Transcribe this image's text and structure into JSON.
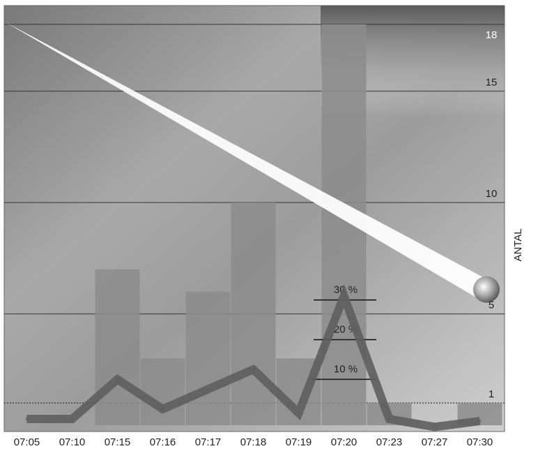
{
  "chart_data": {
    "type": "bar",
    "title": "",
    "xlabel": "",
    "ylabel": "ANTAL",
    "categories": [
      "07:05",
      "07:10",
      "07:15",
      "07:16",
      "07:17",
      "07:18",
      "07:19",
      "07:20",
      "07:23",
      "07:27",
      "07:30"
    ],
    "series": [
      {
        "type": "bar",
        "values": [
          0,
          0,
          7,
          3,
          6,
          10,
          3,
          18,
          1,
          0,
          1
        ]
      },
      {
        "type": "line",
        "axis": "percent",
        "values": [
          0,
          0,
          10,
          2.5,
          7.5,
          12.5,
          1.5,
          31,
          0,
          -2,
          -0.5
        ]
      }
    ],
    "y_ticks": [
      "1",
      "5",
      "10",
      "15",
      "18"
    ],
    "y_tick_values": [
      1,
      5,
      10,
      15,
      18
    ],
    "percent_ticks": [
      "10 %",
      "20 %",
      "30 %"
    ],
    "percent_tick_values": [
      10,
      20,
      30
    ],
    "ylim": [
      0,
      18
    ],
    "grid": true,
    "colors": {
      "bar": "#8c8c8c",
      "line": "#5e5e5e",
      "background_dark": "#555555",
      "background_light": "#ffffff",
      "gridline": "#333333"
    }
  }
}
